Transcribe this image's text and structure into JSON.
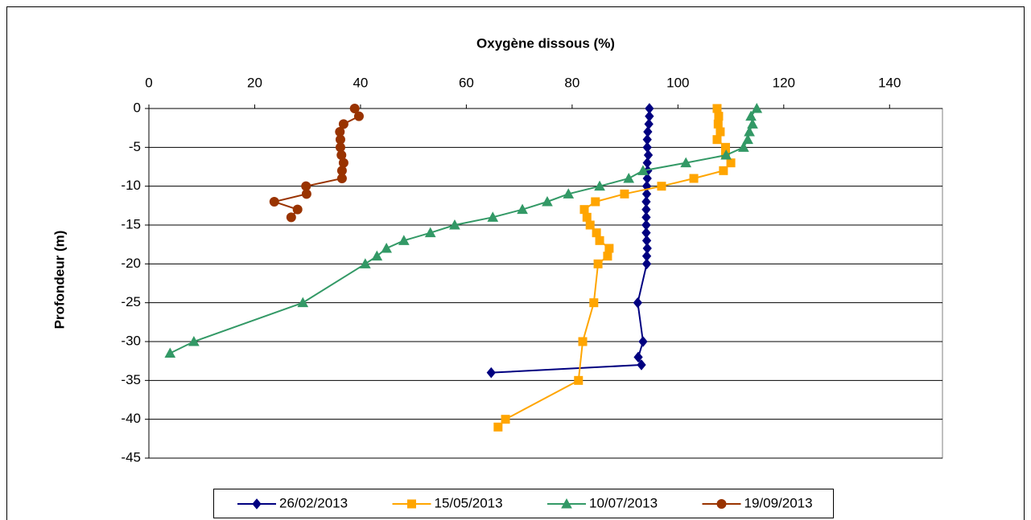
{
  "chart_data": {
    "type": "scatter-line",
    "title": "Oxygène dissous (%)",
    "ylabel": "Profondeur (m)",
    "xlim": [
      0,
      150
    ],
    "xticks": [
      0,
      20,
      40,
      60,
      80,
      100,
      120,
      140
    ],
    "ylim": [
      -45,
      0
    ],
    "yticks": [
      0,
      -5,
      -10,
      -15,
      -20,
      -25,
      -30,
      -35,
      -40,
      -45
    ],
    "grid": true,
    "legend": "bottom",
    "series": [
      {
        "name": "26/02/2013",
        "color": "#000080",
        "marker": "diamond",
        "x": [
          94.6,
          94.6,
          94.5,
          94.3,
          94.2,
          94.2,
          94.4,
          94.2,
          94.3,
          94.2,
          94.1,
          94.1,
          94.0,
          94.0,
          94.0,
          94.0,
          94.0,
          94.1,
          94.2,
          94.1,
          94.1,
          92.4,
          93.4,
          92.5,
          93.1,
          64.7
        ],
        "values": [
          0,
          -1,
          -2,
          -3,
          -4,
          -5,
          -6,
          -7,
          -8,
          -9,
          -10,
          -11,
          -12,
          -13,
          -14,
          -15,
          -16,
          -17,
          -18,
          -19,
          -20,
          -25,
          -30,
          -32,
          -33,
          -34
        ]
      },
      {
        "name": "15/05/2013",
        "color": "#ffa500",
        "marker": "square",
        "x": [
          107.4,
          107.7,
          107.6,
          108.0,
          107.4,
          109.0,
          109.0,
          110.0,
          108.6,
          103.0,
          96.9,
          89.9,
          84.4,
          82.3,
          82.8,
          83.4,
          84.6,
          85.2,
          87.0,
          86.7,
          84.9,
          84.1,
          82.0,
          81.2,
          67.4,
          66.0
        ],
        "values": [
          0,
          -1,
          -2,
          -3,
          -4,
          -5,
          -6,
          -7,
          -8,
          -9,
          -10,
          -11,
          -12,
          -13,
          -14,
          -15,
          -16,
          -17,
          -18,
          -19,
          -20,
          -25,
          -30,
          -35,
          -40,
          -41
        ]
      },
      {
        "name": "10/07/2013",
        "color": "#339966",
        "marker": "triangle",
        "x": [
          114.9,
          113.8,
          114.1,
          113.5,
          113.2,
          112.4,
          109.1,
          101.5,
          93.4,
          90.7,
          85.2,
          79.3,
          75.3,
          70.6,
          65.0,
          57.8,
          53.2,
          48.2,
          44.9,
          43.1,
          40.9,
          29.1,
          8.5,
          4.0
        ],
        "values": [
          0,
          -1,
          -2,
          -3,
          -4,
          -5,
          -6,
          -7,
          -8,
          -9,
          -10,
          -11,
          -12,
          -13,
          -14,
          -15,
          -16,
          -17,
          -18,
          -19,
          -20,
          -25,
          -30,
          -31.5
        ]
      },
      {
        "name": "19/09/2013",
        "color": "#993300",
        "marker": "circle",
        "x": [
          38.9,
          39.7,
          36.8,
          36.1,
          36.2,
          36.2,
          36.4,
          36.8,
          36.5,
          36.5,
          29.7,
          29.8,
          23.7,
          28.1,
          26.9
        ],
        "values": [
          0,
          -1,
          -2,
          -3,
          -4,
          -5,
          -6,
          -7,
          -8,
          -9,
          -10,
          -11,
          -12,
          -13,
          -14
        ]
      }
    ]
  }
}
